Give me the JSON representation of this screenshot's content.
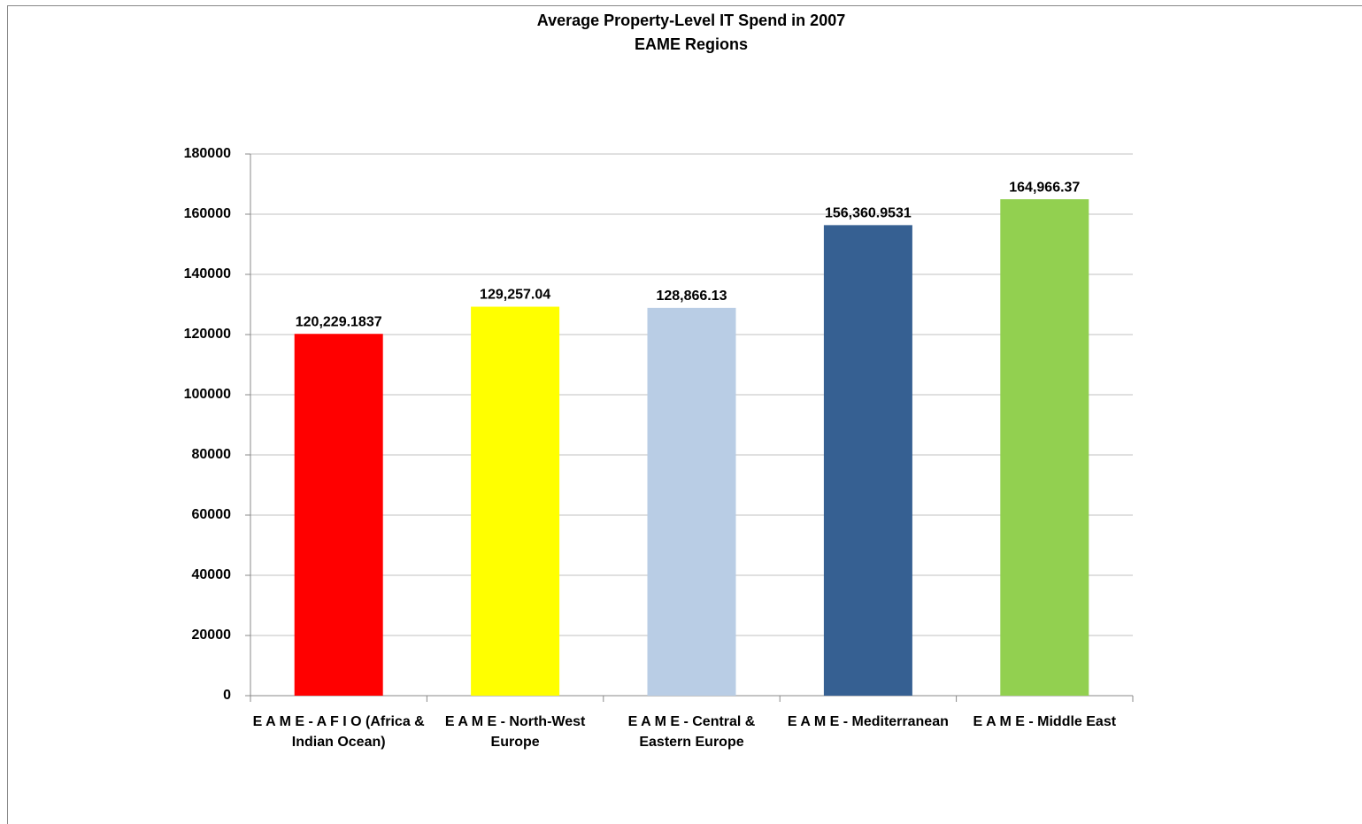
{
  "chart_data": {
    "type": "bar",
    "title": "Average Property-Level IT Spend in 2007",
    "subtitle": "EAME Regions",
    "categories": [
      "E A M E - A F I O (Africa & Indian Ocean)",
      "E A M E - North-West Europe",
      "E A M E - Central & Eastern Europe",
      "E A M E - Mediterranean",
      "E A M E - Middle East"
    ],
    "values": [
      120229.1837,
      129257.04,
      128866.13,
      156360.9531,
      164966.37
    ],
    "value_labels": [
      "120,229.1837",
      "129,257.04",
      "128,866.13",
      "156,360.9531",
      "164,966.37"
    ],
    "colors": [
      "#ff0000",
      "#ffff00",
      "#b9cde5",
      "#366092",
      "#92d050"
    ],
    "ylim": [
      0,
      180000
    ],
    "yticks": [
      0,
      20000,
      40000,
      60000,
      80000,
      100000,
      120000,
      140000,
      160000,
      180000
    ],
    "grid": true
  }
}
